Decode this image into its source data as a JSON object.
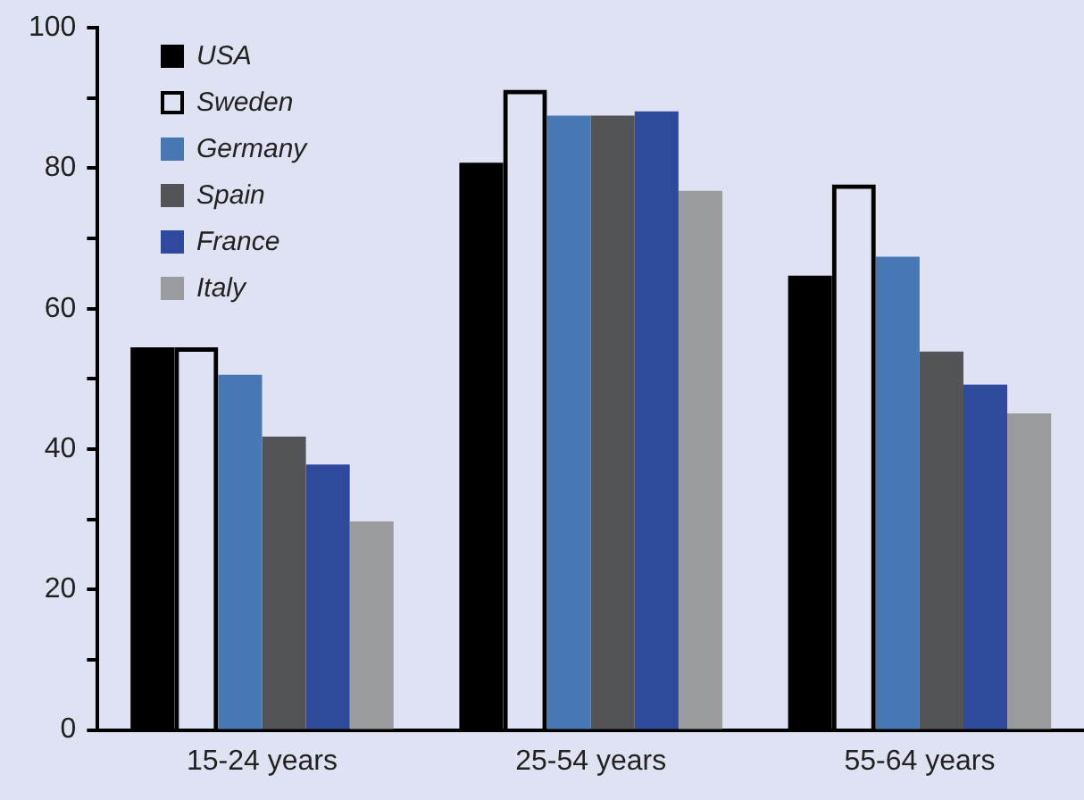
{
  "chart_data": {
    "type": "bar",
    "categories": [
      "15-24 years",
      "25-54 years",
      "55-64 years"
    ],
    "series": [
      {
        "name": "USA",
        "color": "#000000",
        "values": [
          54.5,
          80.8,
          64.7
        ]
      },
      {
        "name": "Sweden",
        "color": "#000000",
        "values": [
          54.5,
          91.2,
          77.7
        ]
      },
      {
        "name": "Germany",
        "color": "#4878b4",
        "values": [
          50.6,
          87.5,
          67.4
        ]
      },
      {
        "name": "Spain",
        "color": "#535457",
        "values": [
          41.8,
          87.5,
          53.9
        ]
      },
      {
        "name": "France",
        "color": "#2f4a9c",
        "values": [
          37.8,
          88.1,
          49.2
        ]
      },
      {
        "name": "Italy",
        "color": "#9a9b9f",
        "values": [
          29.7,
          76.8,
          45.1
        ]
      }
    ],
    "ylim": [
      0,
      100
    ],
    "yticks": [
      0,
      {
        "value": 10,
        "label": null
      },
      20,
      {
        "value": 30,
        "label": null
      },
      40,
      {
        "value": 50,
        "label": null
      },
      60,
      {
        "value": 70,
        "label": null
      },
      80,
      {
        "value": 90,
        "label": null
      },
      100
    ],
    "grid": false,
    "legend": "top left"
  }
}
